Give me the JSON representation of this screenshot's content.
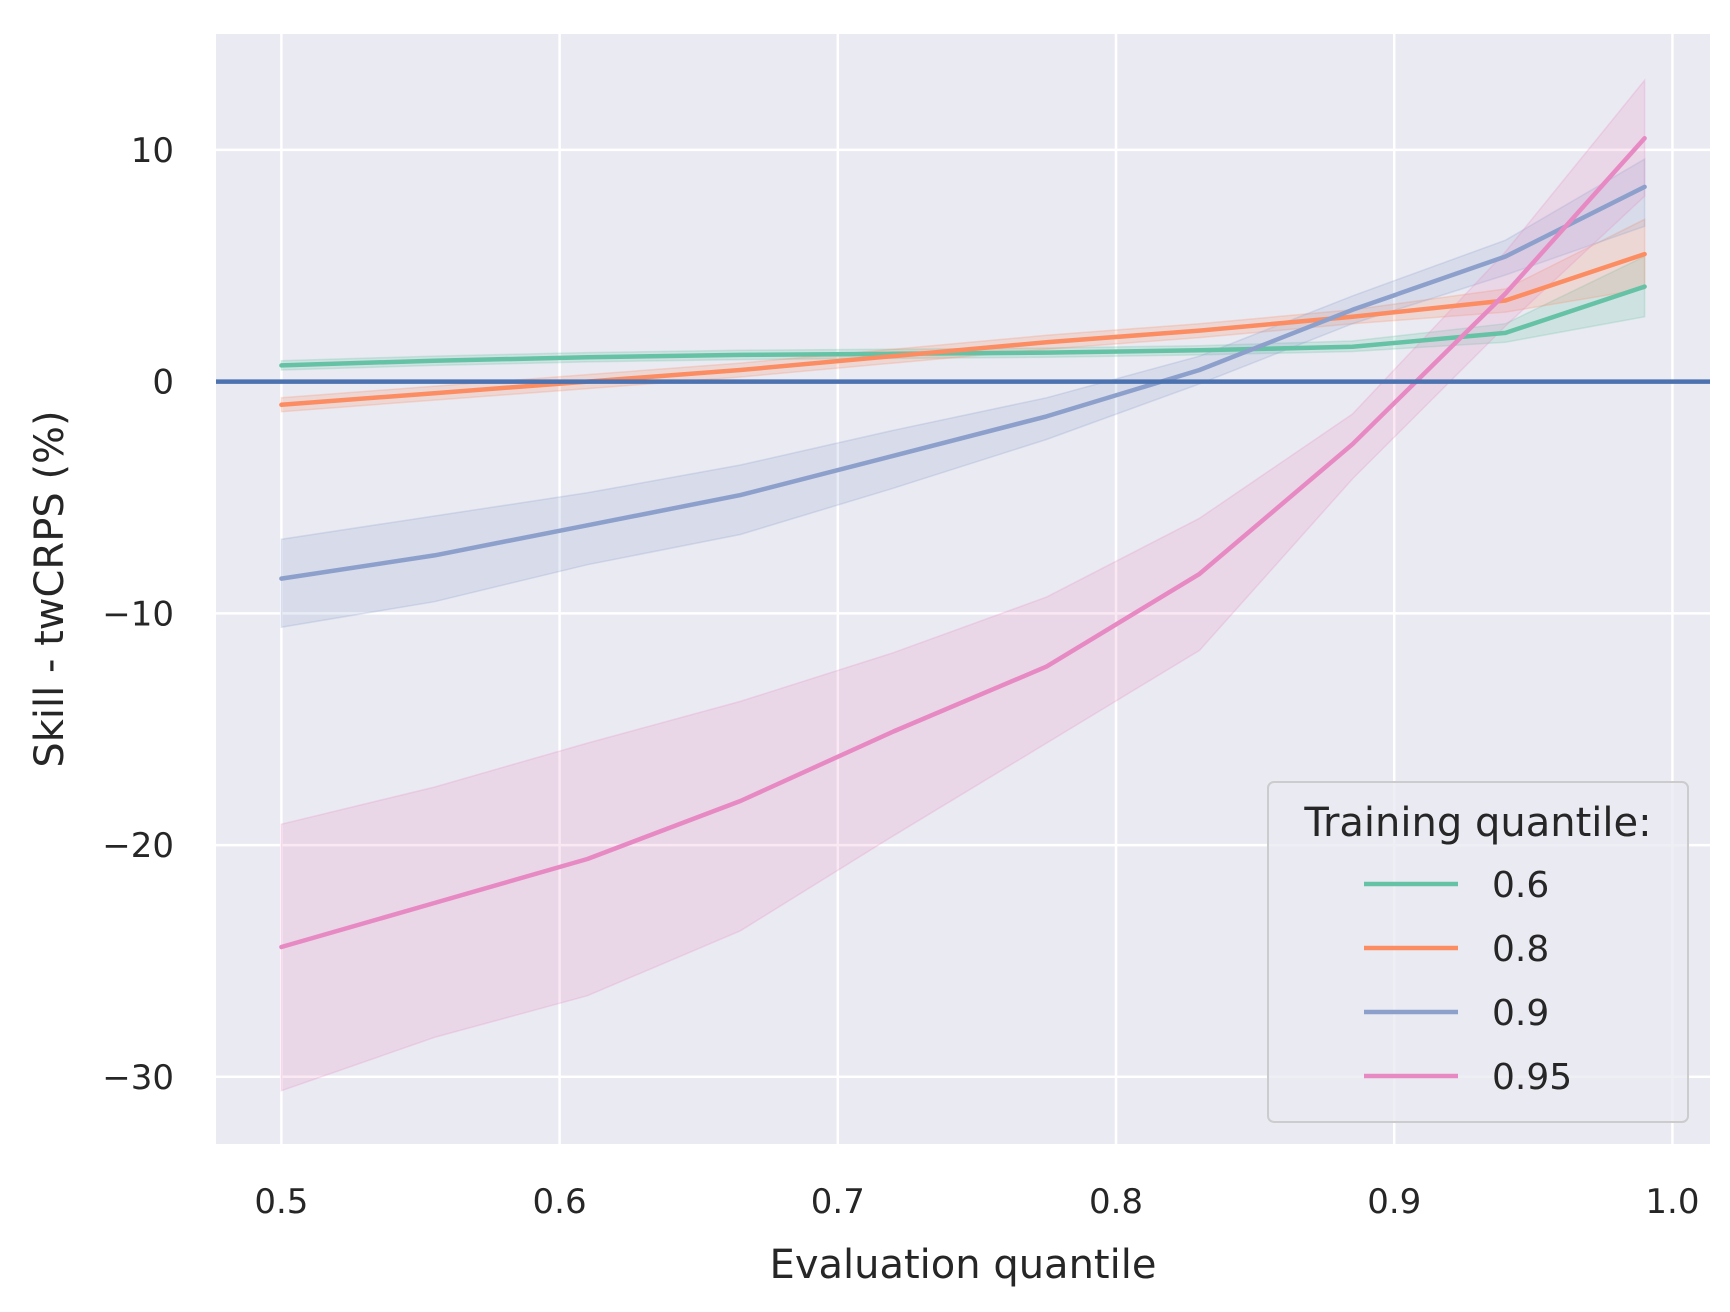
{
  "chart_data": {
    "type": "line",
    "xlabel": "Evaluation quantile",
    "ylabel": "Skill - twCRPS (%)",
    "xlim": [
      0.4765,
      1.0135
    ],
    "ylim": [
      -32.9,
      15.0
    ],
    "x_ticks": [
      0.5,
      0.6,
      0.7,
      0.8,
      0.9,
      1.0
    ],
    "x_tick_labels": [
      "0.5",
      "0.6",
      "0.7",
      "0.8",
      "0.9",
      "1.0"
    ],
    "y_ticks": [
      10,
      0,
      -10,
      -20,
      -30
    ],
    "y_tick_labels": [
      "10",
      "0",
      "−10",
      "−20",
      "−30"
    ],
    "grid": true,
    "reference_line": {
      "y": 0,
      "color": "#4c72b0"
    },
    "legend": {
      "title": "Training quantile:",
      "position": "lower-right"
    },
    "x": [
      0.5,
      0.555,
      0.61,
      0.665,
      0.72,
      0.775,
      0.83,
      0.885,
      0.94,
      0.99
    ],
    "series": [
      {
        "name": "0.6",
        "color": "#66c2a5",
        "values": [
          0.7,
          0.9,
          1.05,
          1.15,
          1.2,
          1.25,
          1.35,
          1.5,
          2.1,
          4.1
        ],
        "lower": [
          0.5,
          0.7,
          0.85,
          0.95,
          1.0,
          1.05,
          1.15,
          1.3,
          1.7,
          2.8
        ],
        "upper": [
          0.9,
          1.1,
          1.25,
          1.35,
          1.4,
          1.45,
          1.55,
          1.75,
          2.5,
          5.4
        ]
      },
      {
        "name": "0.8",
        "color": "#fc8d62",
        "values": [
          -1.0,
          -0.5,
          0.0,
          0.5,
          1.1,
          1.7,
          2.2,
          2.8,
          3.5,
          5.5
        ],
        "lower": [
          -1.3,
          -0.8,
          -0.3,
          0.2,
          0.8,
          1.4,
          1.9,
          2.5,
          3.0,
          4.0
        ],
        "upper": [
          -0.7,
          -0.2,
          0.3,
          0.8,
          1.4,
          2.0,
          2.5,
          3.1,
          4.0,
          7.0
        ]
      },
      {
        "name": "0.9",
        "color": "#8da0cb",
        "values": [
          -8.5,
          -7.5,
          -6.2,
          -4.9,
          -3.2,
          -1.5,
          0.5,
          3.1,
          5.4,
          8.4
        ],
        "lower": [
          -10.6,
          -9.5,
          -7.9,
          -6.6,
          -4.6,
          -2.5,
          -0.1,
          2.5,
          4.6,
          6.7
        ],
        "upper": [
          -6.8,
          -5.8,
          -4.8,
          -3.6,
          -2.1,
          -0.7,
          1.1,
          3.7,
          6.1,
          9.6
        ]
      },
      {
        "name": "0.95",
        "color": "#e78ac3",
        "values": [
          -24.4,
          -22.5,
          -20.6,
          -18.1,
          -15.1,
          -12.3,
          -8.3,
          -2.7,
          3.8,
          10.5
        ],
        "lower": [
          -30.6,
          -28.3,
          -26.5,
          -23.7,
          -19.6,
          -15.6,
          -11.6,
          -4.2,
          2.4,
          8.0
        ],
        "upper": [
          -19.1,
          -17.5,
          -15.6,
          -13.8,
          -11.7,
          -9.3,
          -5.9,
          -1.4,
          5.6,
          13.0
        ]
      }
    ]
  }
}
